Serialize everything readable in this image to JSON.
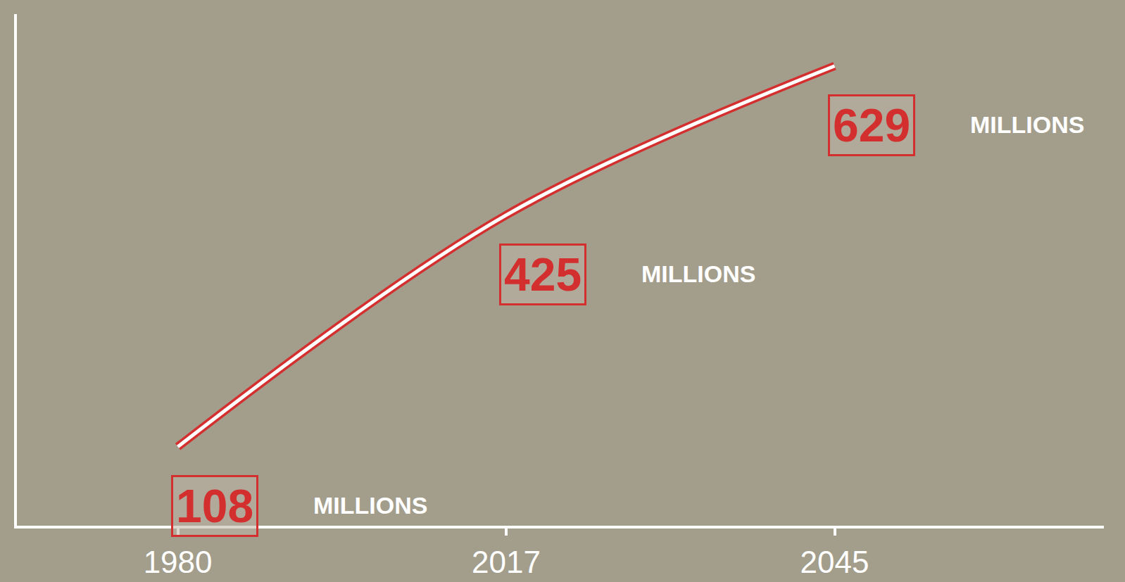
{
  "chart_data": {
    "type": "line",
    "categories": [
      "1980",
      "2017",
      "2045"
    ],
    "values": [
      108,
      425,
      629
    ],
    "value_labels": [
      "108 MILLIONS",
      "425 MILLIONS",
      "629 MILLIONS"
    ],
    "data_labels": true,
    "color": "#d32f2f",
    "ylim": [
      0,
      700
    ],
    "tick_labels": "x",
    "grid": false
  }
}
